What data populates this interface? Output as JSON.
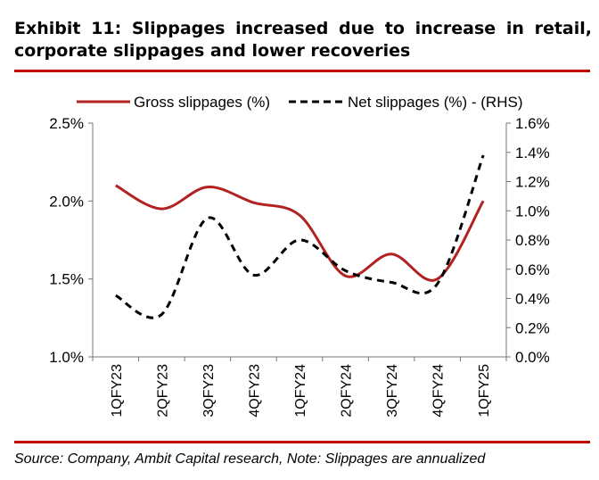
{
  "header": {
    "title_line1": "Exhibit 11: Slippages increased due to increase in retail,",
    "title_line2": "corporate slippages and lower recoveries"
  },
  "footer": {
    "source": "Source: Company, Ambit Capital research, Note: Slippages are annualized"
  },
  "colors": {
    "accent": "#c00000",
    "gross_line": "#b22222",
    "net_line": "#000000"
  },
  "chart_data": {
    "type": "line",
    "categories": [
      "1QFY23",
      "2QFY23",
      "3QFY23",
      "4QFY23",
      "1QFY24",
      "2QFY24",
      "3QFY24",
      "4QFY24",
      "1QFY25"
    ],
    "series": [
      {
        "name": "Gross slippages (%)",
        "axis": "left",
        "style": "solid",
        "values": [
          2.1,
          1.95,
          2.09,
          1.99,
          1.91,
          1.52,
          1.66,
          1.5,
          2.0
        ]
      },
      {
        "name": "Net slippages (%) - (RHS)",
        "axis": "right",
        "style": "dashed",
        "values": [
          0.42,
          0.29,
          0.95,
          0.56,
          0.8,
          0.59,
          0.51,
          0.5,
          1.38
        ]
      }
    ],
    "y_left": {
      "min": 1.0,
      "max": 2.5,
      "ticks": [
        "1.0%",
        "1.5%",
        "2.0%",
        "2.5%"
      ]
    },
    "y_right": {
      "min": 0.0,
      "max": 1.6,
      "ticks": [
        "0.0%",
        "0.2%",
        "0.4%",
        "0.6%",
        "0.8%",
        "1.0%",
        "1.2%",
        "1.4%",
        "1.6%"
      ]
    },
    "grid": false,
    "legend_position": "top"
  }
}
